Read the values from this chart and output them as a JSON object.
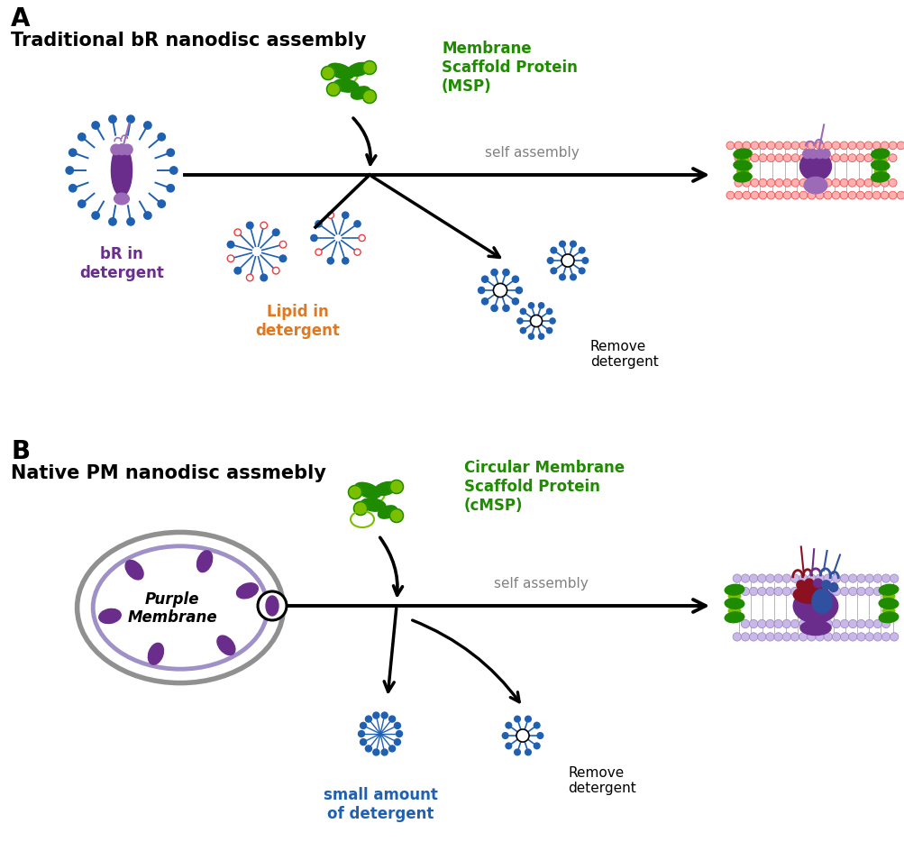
{
  "panel_A_label": "A",
  "panel_B_label": "B",
  "panel_A_title": "Traditional bR nanodisc assembly",
  "panel_B_title": "Native PM nanodisc assmebly",
  "text_bR": "bR in\ndetergent",
  "text_lipid": "Lipid in\ndetergent",
  "text_MSP": "Membrane\nScaffold Protein\n(MSP)",
  "text_cMSP": "Circular Membrane\nScaffold Protein\n(cMSP)",
  "text_self_assembly": "self assembly",
  "text_remove_detergent_A": "Remove\ndetergent",
  "text_small_amount": "small amount\nof detergent",
  "text_remove_detergent_B": "Remove\ndetergent",
  "text_purple_membrane": "Purple\nMembrane",
  "color_purple": "#6B2D8B",
  "color_purple_light": "#9B6BB8",
  "color_blue_detergent": "#2060B0",
  "color_green_MSP": "#1E8B00",
  "color_green_light": "#7ABF00",
  "color_orange_lipid": "#E07820",
  "color_red_lipid": "#E84040",
  "color_pink_lipid": "#FFB0B0",
  "color_gray_membrane": "#909090",
  "color_lavender": "#A090C8",
  "color_dark_red": "#8B1020",
  "color_blue_purple": "#3050A0",
  "background_color": "#FFFFFF"
}
